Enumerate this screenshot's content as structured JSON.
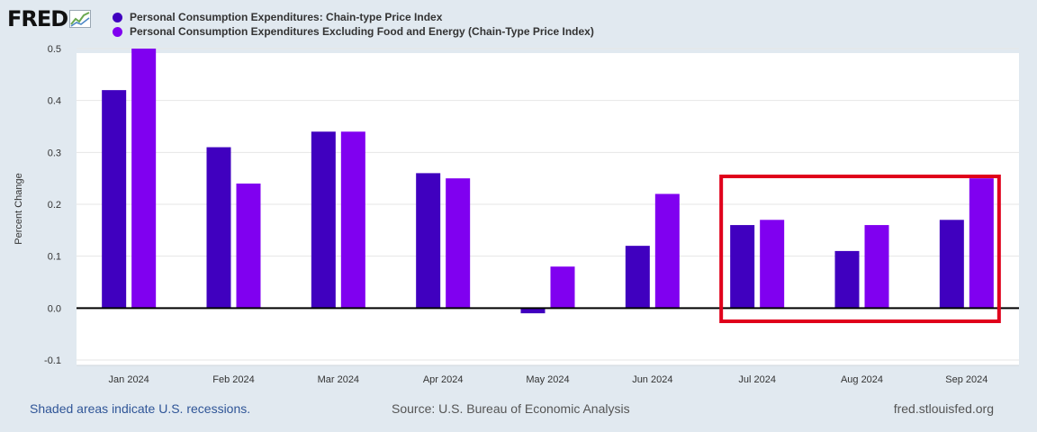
{
  "header": {
    "logo_text": "FRED",
    "legend": [
      {
        "label": "Personal Consumption Expenditures: Chain-type Price Index",
        "color": "#4000bf"
      },
      {
        "label": "Personal Consumption Expenditures Excluding Food and Energy (Chain-Type Price Index)",
        "color": "#8000f0"
      }
    ]
  },
  "chart_data": {
    "type": "bar",
    "title": "",
    "xlabel": "",
    "ylabel": "Percent Change",
    "categories": [
      "Jan 2024",
      "Feb 2024",
      "Mar 2024",
      "Apr 2024",
      "May 2024",
      "Jun 2024",
      "Jul 2024",
      "Aug 2024",
      "Sep 2024"
    ],
    "series": [
      {
        "name": "Personal Consumption Expenditures: Chain-type Price Index",
        "color": "#4000bf",
        "values": [
          0.42,
          0.31,
          0.34,
          0.26,
          -0.01,
          0.12,
          0.16,
          0.11,
          0.17
        ]
      },
      {
        "name": "Personal Consumption Expenditures Excluding Food and Energy (Chain-Type Price Index)",
        "color": "#8000f0",
        "values": [
          0.5,
          0.24,
          0.34,
          0.25,
          0.08,
          0.22,
          0.17,
          0.16,
          0.25
        ]
      }
    ],
    "ylim": [
      -0.1,
      0.5
    ],
    "yticks": [
      "0.5",
      "0.4",
      "0.3",
      "0.2",
      "0.1",
      "0.0",
      "-0.1"
    ],
    "grid": true,
    "annotations": [
      {
        "type": "highlight-box",
        "color": "#e0001b",
        "categories": [
          "Jul 2024",
          "Aug 2024",
          "Sep 2024"
        ]
      }
    ]
  },
  "footer": {
    "left": "Shaded areas indicate U.S. recessions.",
    "center": "Source: U.S. Bureau of Economic Analysis",
    "right": "fred.stlouisfed.org"
  }
}
